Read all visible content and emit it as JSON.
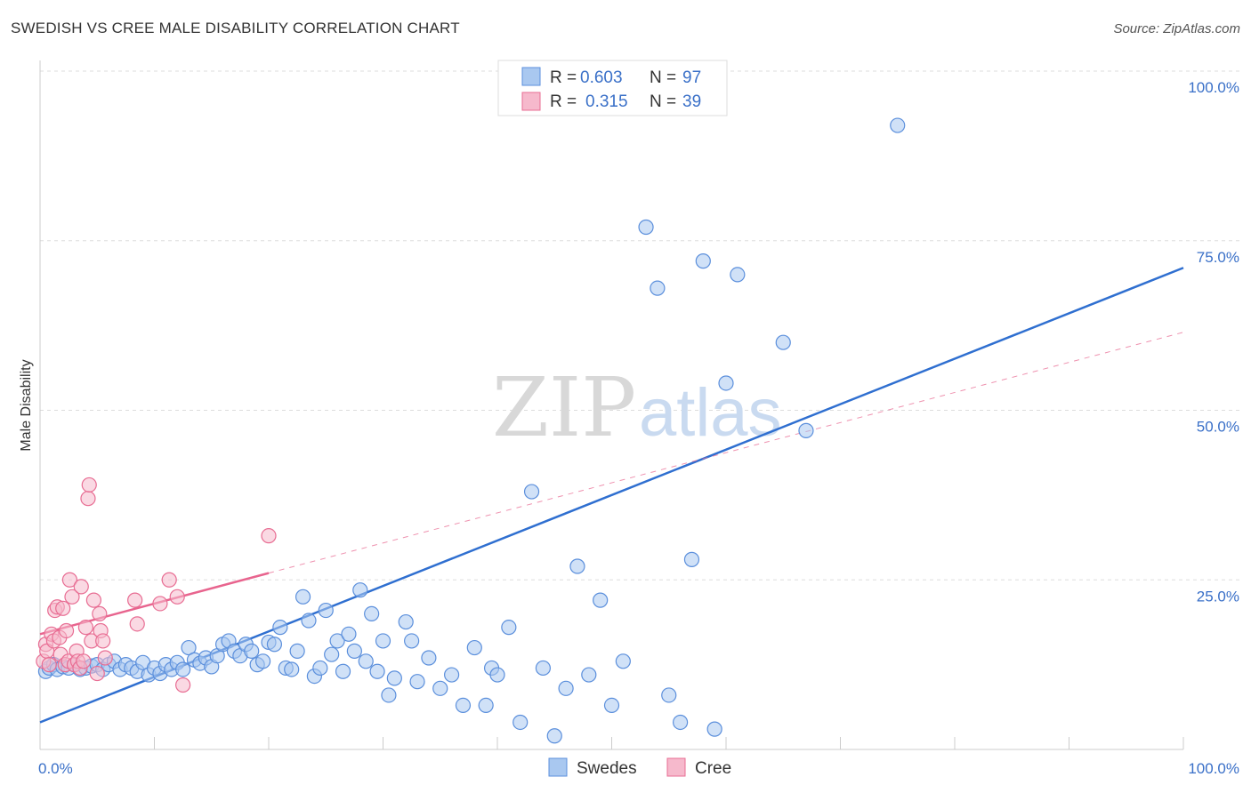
{
  "header": {
    "title": "SWEDISH VS CREE MALE DISABILITY CORRELATION CHART",
    "source": "Source: ZipAtlas.com"
  },
  "watermark": {
    "zip": "ZIP",
    "atlas": "atlas"
  },
  "colors": {
    "swedes": "#5b8fdc",
    "swedes_fill": "#a9c8f0",
    "swedes_line": "#2f6fd0",
    "cree": "#e86d93",
    "cree_fill": "#f6b9cc",
    "cree_line": "#e8648e",
    "tick_text": "#3a70c8",
    "grid": "#dddddd"
  },
  "chart_data": {
    "type": "scatter",
    "title": "SWEDISH VS CREE MALE DISABILITY CORRELATION CHART",
    "xlabel": "",
    "ylabel": "Male Disability",
    "xlim": [
      0,
      100
    ],
    "ylim": [
      0,
      100
    ],
    "x_tick_labels": [
      "0.0%",
      "100.0%"
    ],
    "y_ticks": [
      25,
      50,
      75,
      100
    ],
    "y_tick_labels": [
      "25.0%",
      "50.0%",
      "75.0%",
      "100.0%"
    ],
    "grid": true,
    "legend": {
      "placement": "top-center",
      "rows": [
        {
          "r_label": "R =",
          "r_value": "0.603",
          "n_label": "N =",
          "n_value": "97"
        },
        {
          "r_label": "R =",
          "r_value": "0.315",
          "n_label": "N =",
          "n_value": "39"
        }
      ]
    },
    "bottom_legend": [
      "Swedes",
      "Cree"
    ],
    "series": [
      {
        "name": "Swedes",
        "points": [
          [
            0.5,
            11.5
          ],
          [
            0.8,
            12
          ],
          [
            1.2,
            12.5
          ],
          [
            1.5,
            11.8
          ],
          [
            2,
            12.2
          ],
          [
            2.5,
            12
          ],
          [
            3,
            12.5
          ],
          [
            3.5,
            11.8
          ],
          [
            4,
            12
          ],
          [
            4.5,
            12.3
          ],
          [
            5,
            12.5
          ],
          [
            5.5,
            11.8
          ],
          [
            6,
            12.5
          ],
          [
            6.5,
            13
          ],
          [
            7,
            11.8
          ],
          [
            7.5,
            12.5
          ],
          [
            8,
            12
          ],
          [
            8.5,
            11.5
          ],
          [
            9,
            12.8
          ],
          [
            9.5,
            11
          ],
          [
            10,
            12
          ],
          [
            10.5,
            11.2
          ],
          [
            11,
            12.5
          ],
          [
            11.5,
            11.8
          ],
          [
            12,
            12.8
          ],
          [
            12.5,
            11.8
          ],
          [
            13,
            15
          ],
          [
            13.5,
            13.2
          ],
          [
            14,
            12.7
          ],
          [
            14.5,
            13.5
          ],
          [
            15,
            12.2
          ],
          [
            15.5,
            13.8
          ],
          [
            16,
            15.5
          ],
          [
            16.5,
            16
          ],
          [
            17,
            14.5
          ],
          [
            17.5,
            13.8
          ],
          [
            18,
            15.5
          ],
          [
            18.5,
            14.5
          ],
          [
            19,
            12.5
          ],
          [
            19.5,
            13
          ],
          [
            20,
            15.8
          ],
          [
            20.5,
            15.5
          ],
          [
            21,
            18
          ],
          [
            21.5,
            12
          ],
          [
            22,
            11.8
          ],
          [
            22.5,
            14.5
          ],
          [
            23,
            22.5
          ],
          [
            23.5,
            19
          ],
          [
            24,
            10.8
          ],
          [
            24.5,
            12
          ],
          [
            25,
            20.5
          ],
          [
            25.5,
            14
          ],
          [
            26,
            16
          ],
          [
            26.5,
            11.5
          ],
          [
            27,
            17
          ],
          [
            27.5,
            14.5
          ],
          [
            28,
            23.5
          ],
          [
            28.5,
            13
          ],
          [
            29,
            20
          ],
          [
            29.5,
            11.5
          ],
          [
            30,
            16
          ],
          [
            30.5,
            8
          ],
          [
            31,
            10.5
          ],
          [
            32,
            18.8
          ],
          [
            32.5,
            16
          ],
          [
            33,
            10
          ],
          [
            34,
            13.5
          ],
          [
            35,
            9
          ],
          [
            36,
            11
          ],
          [
            37,
            6.5
          ],
          [
            38,
            15
          ],
          [
            39,
            6.5
          ],
          [
            39.5,
            12
          ],
          [
            40,
            11
          ],
          [
            41,
            18
          ],
          [
            42,
            4
          ],
          [
            43,
            38
          ],
          [
            44,
            12
          ],
          [
            45,
            2
          ],
          [
            46,
            9
          ],
          [
            47,
            27
          ],
          [
            48,
            11
          ],
          [
            49,
            22
          ],
          [
            50,
            6.5
          ],
          [
            51,
            13
          ],
          [
            53,
            77
          ],
          [
            54,
            68
          ],
          [
            55,
            8
          ],
          [
            56,
            4
          ],
          [
            57,
            28
          ],
          [
            58,
            72
          ],
          [
            59,
            3
          ],
          [
            60,
            54
          ],
          [
            61,
            70
          ],
          [
            65,
            60
          ],
          [
            67,
            47
          ],
          [
            75,
            92
          ]
        ]
      },
      {
        "name": "Cree",
        "points": [
          [
            0.3,
            13
          ],
          [
            0.5,
            15.5
          ],
          [
            0.6,
            14.5
          ],
          [
            0.8,
            12.5
          ],
          [
            1,
            17
          ],
          [
            1.2,
            16
          ],
          [
            1.3,
            20.5
          ],
          [
            1.5,
            21
          ],
          [
            1.7,
            16.5
          ],
          [
            1.8,
            14
          ],
          [
            2,
            20.8
          ],
          [
            2.2,
            12.5
          ],
          [
            2.3,
            17.5
          ],
          [
            2.5,
            13
          ],
          [
            2.6,
            25
          ],
          [
            2.8,
            22.5
          ],
          [
            3,
            12.5
          ],
          [
            3.2,
            14.5
          ],
          [
            3.3,
            13
          ],
          [
            3.5,
            12
          ],
          [
            3.6,
            24
          ],
          [
            3.8,
            13
          ],
          [
            4,
            18
          ],
          [
            4.2,
            37
          ],
          [
            4.3,
            39
          ],
          [
            4.5,
            16
          ],
          [
            4.7,
            22
          ],
          [
            5,
            11.2
          ],
          [
            5.2,
            20
          ],
          [
            5.3,
            17.5
          ],
          [
            5.5,
            16
          ],
          [
            5.7,
            13.5
          ],
          [
            8.3,
            22
          ],
          [
            8.5,
            18.5
          ],
          [
            10.5,
            21.5
          ],
          [
            11.3,
            25
          ],
          [
            12,
            22.5
          ],
          [
            12.5,
            9.5
          ],
          [
            20,
            31.5
          ]
        ]
      }
    ],
    "trendlines": [
      {
        "series": "Swedes",
        "x0": 0,
        "y0": 4,
        "x1": 100,
        "y1": 71
      },
      {
        "series": "Cree",
        "solid": [
          [
            0,
            17
          ],
          [
            20,
            26
          ]
        ],
        "dashed": [
          [
            20,
            26
          ],
          [
            100,
            61.5
          ]
        ]
      }
    ]
  }
}
